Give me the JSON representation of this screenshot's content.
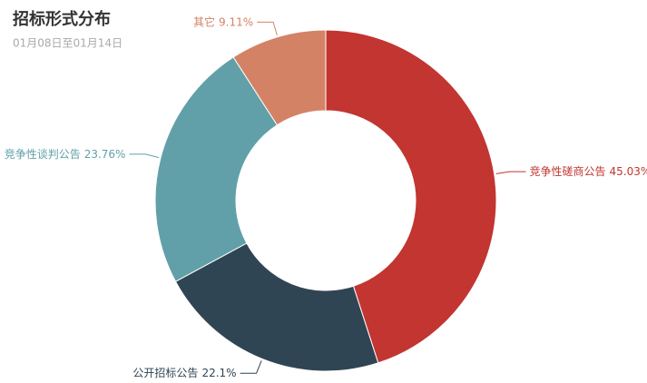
{
  "chart_data": {
    "type": "pie",
    "title": "招标形式分布",
    "subtitle": "01月08日至01月14日",
    "categories": [
      "竞争性磋商公告",
      "公开招标公告",
      "竞争性谈判公告",
      "其它"
    ],
    "values": [
      45.03,
      22.1,
      23.76,
      9.11
    ],
    "value_labels": [
      "45.03%",
      "22.1%",
      "23.76%",
      "9.11%"
    ],
    "colors": [
      "#c23531",
      "#2f4554",
      "#61a0a8",
      "#d48265"
    ]
  }
}
